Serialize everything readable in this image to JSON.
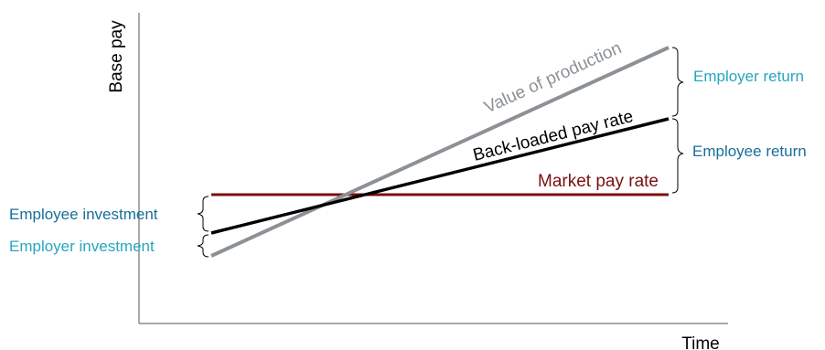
{
  "axes": {
    "y_label": "Base pay",
    "x_label": "Time"
  },
  "lines": {
    "production": "Value of production",
    "backloaded": "Back-loaded pay rate",
    "market": "Market pay rate"
  },
  "brackets": {
    "employer_return": "Employer return",
    "employee_return": "Employee return",
    "employee_investment": "Employee investment",
    "employer_investment": "Employer investment"
  },
  "colors": {
    "production": "#8c9196",
    "backloaded": "#000000",
    "market": "#7a0f10",
    "teal": "#27a6bf",
    "blue": "#186f99",
    "axis": "#555555",
    "text": "#000000"
  }
}
